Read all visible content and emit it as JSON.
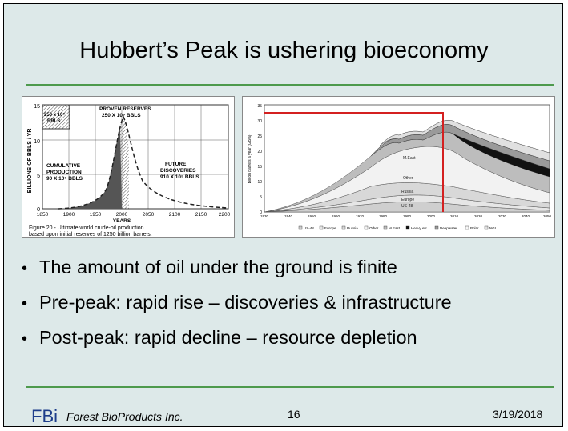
{
  "slide": {
    "title": "Hubbert’s Peak is ushering bioeconomy",
    "bullets": [
      "The amount of oil under the ground is finite",
      "Pre-peak:  rapid rise – discoveries & infrastructure",
      "Post-peak: rapid decline – resource depletion"
    ],
    "bullet_glyph": "•",
    "footer": {
      "logo": "FBi",
      "org": "Forest BioProducts Inc.",
      "page": "16",
      "date": "3/19/2018"
    }
  },
  "figure_left": {
    "y_axis_label": "BILLIONS OF BBLS / YR",
    "x_axis_label": "YEARS",
    "y_ticks": [
      "0",
      "5",
      "10",
      "15"
    ],
    "x_ticks": [
      "1850",
      "1900",
      "1950",
      "2000",
      "2050",
      "2100",
      "2150",
      "2200"
    ],
    "box_label_1": "250 x 10⁹",
    "box_label_2": "BBLS",
    "proven_reserves": "PROVEN RESERVES",
    "proven_value": "250 X 10⁹ BBLS",
    "cumulative_1": "CUMULATIVE",
    "cumulative_2": "PRODUCTION",
    "cumulative_3": "90 X 10⁹ BBLS",
    "future_1": "FUTURE",
    "future_2": "DISCOVERIES",
    "future_3": "910 X 10⁹ BBLS",
    "caption_1": "Figure 20 - Ultimate world crude-oil production",
    "caption_2": "based upon initial reserves of 1250 billion barrels.",
    "colors": {
      "curve": "#222222",
      "fill": "#555555"
    }
  },
  "figure_right": {
    "y_axis_label": "Billion barrels a year (Gb/a)",
    "y_ticks": [
      "0",
      "5",
      "10",
      "15",
      "20",
      "25",
      "30",
      "35"
    ],
    "x_ticks": [
      "1930",
      "1940",
      "1950",
      "1960",
      "1970",
      "1980",
      "1990",
      "2000",
      "2010",
      "2020",
      "2030",
      "2040",
      "2050"
    ],
    "region_labels": [
      "M.East",
      "Other",
      "Russia",
      "Europe",
      "US-48"
    ],
    "legend": [
      "US-48",
      "Europe",
      "Russia",
      "Other",
      "M.East",
      "Heavy etc",
      "Deepwater",
      "Polar",
      "NGL"
    ],
    "colors": {
      "peak_marker": "#d42020",
      "band": "#111111"
    }
  }
}
